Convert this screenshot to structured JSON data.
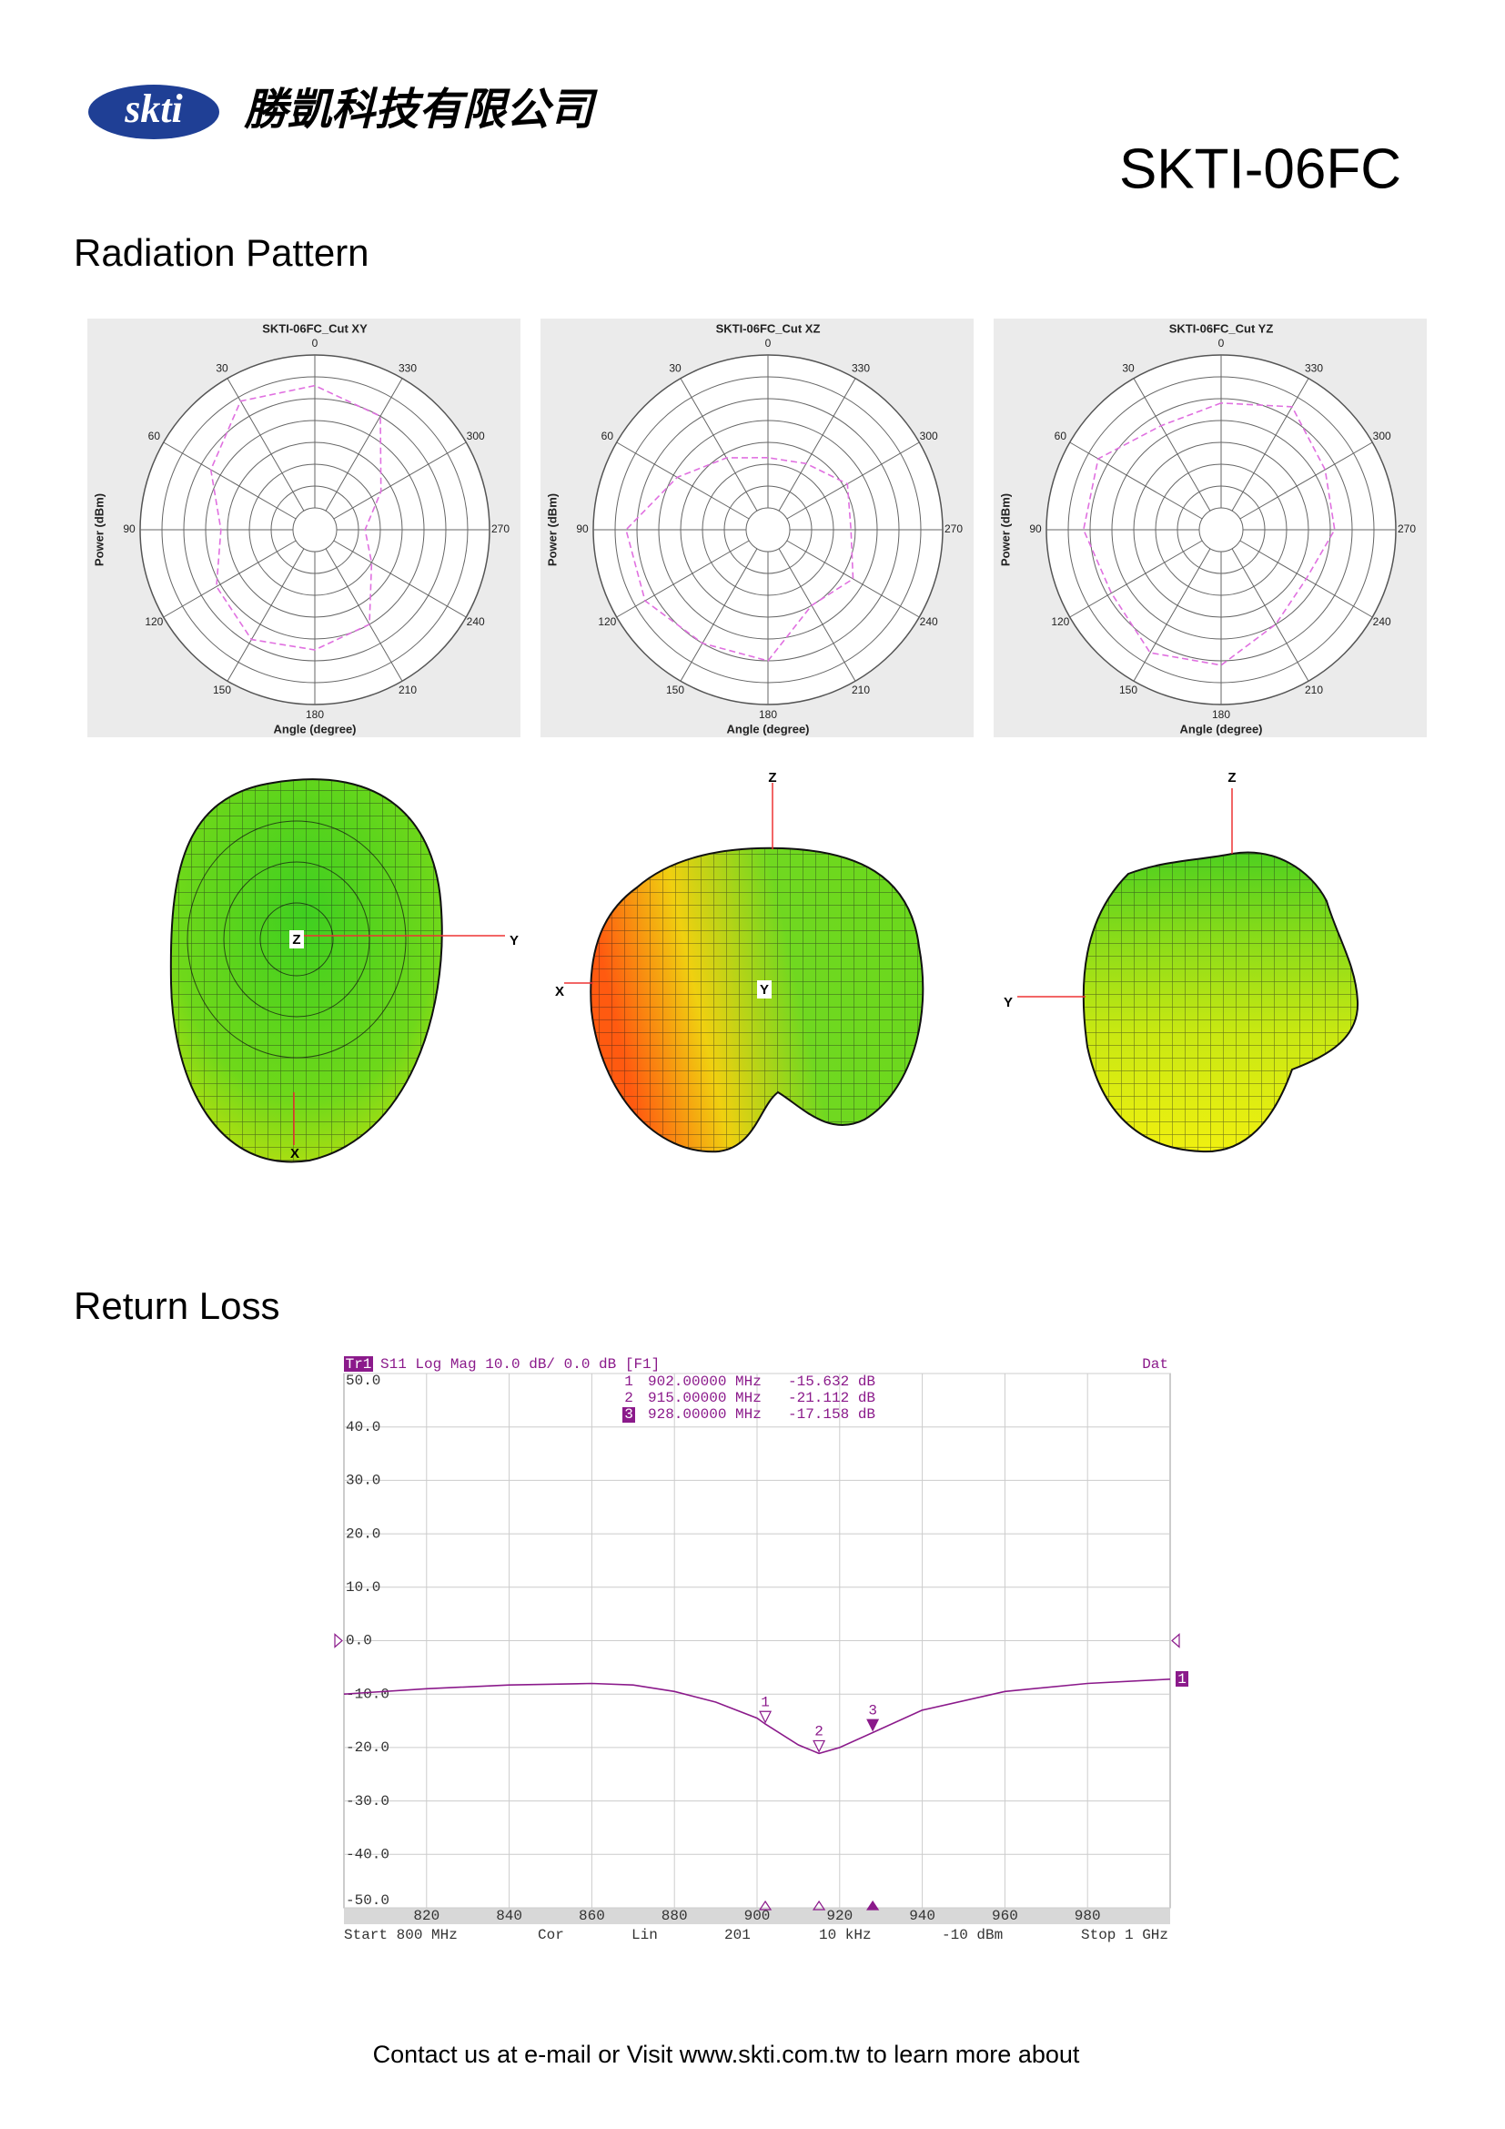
{
  "header": {
    "logo": "skti",
    "company": "勝凱科技有限公司",
    "model": "SKTI-06FC"
  },
  "sections": [
    "Radiation Pattern",
    "Return Loss"
  ],
  "patterns_3d": [
    {
      "axes": [
        "Z",
        "Y",
        "X"
      ]
    },
    {
      "axes": [
        "Z",
        "Y",
        "X"
      ]
    },
    {
      "axes": [
        "Z",
        "Y"
      ]
    }
  ],
  "chart_data": [
    {
      "type": "polar",
      "title": "SKTI-06FC_Cut XY",
      "radial_label": "Power (dBm)",
      "angle_label": "Angle (degree)",
      "angles": [
        0,
        30,
        60,
        90,
        120,
        150,
        180,
        210,
        240,
        270,
        300,
        330
      ],
      "rlim": [
        0,
        8
      ],
      "color": "#e070e0",
      "values": [
        6.6,
        6.8,
        5.5,
        4.3,
        5.2,
        5.8,
        5.5,
        5.0,
        3.0,
        2.3,
        3.5,
        6.0
      ]
    },
    {
      "type": "polar",
      "title": "SKTI-06FC_Cut XZ",
      "radial_label": "Power (dBm)",
      "angle_label": "Angle (degree)",
      "angles": [
        0,
        30,
        60,
        90,
        120,
        150,
        180,
        210,
        240,
        270,
        300,
        330
      ],
      "rlim": [
        0,
        8
      ],
      "color": "#e070e0",
      "values": [
        3.3,
        3.8,
        4.8,
        6.5,
        6.5,
        6.0,
        6.0,
        4.0,
        4.5,
        3.8,
        4.2,
        3.5
      ]
    },
    {
      "type": "polar",
      "title": "SKTI-06FC_Cut YZ",
      "radial_label": "Power (dBm)",
      "angle_label": "Angle (degree)",
      "angles": [
        0,
        30,
        60,
        90,
        120,
        150,
        180,
        210,
        240,
        270,
        300,
        330
      ],
      "rlim": [
        0,
        8
      ],
      "color": "#e070e0",
      "values": [
        5.8,
        5.5,
        6.5,
        6.3,
        5.8,
        6.5,
        6.2,
        5.0,
        4.5,
        5.2,
        5.5,
        6.5
      ]
    },
    {
      "type": "line",
      "trace": "Tr1",
      "header": "S11 Log Mag 10.0 dB/ 0.0 dB [F1]",
      "status": "Dat",
      "trace_end_label": "1",
      "x": [
        800,
        820,
        840,
        860,
        870,
        880,
        890,
        900,
        902,
        910,
        915,
        920,
        928,
        940,
        960,
        980,
        1000
      ],
      "xlim": [
        800,
        1000
      ],
      "xticks": [
        820,
        840,
        860,
        880,
        900,
        920,
        940,
        960,
        980
      ],
      "ylim": [
        -50,
        50
      ],
      "yticks": [
        {
          "value": 50,
          "label": "50.0"
        },
        {
          "value": 40,
          "label": "40.0"
        },
        {
          "value": 30,
          "label": "30.0"
        },
        {
          "value": 20,
          "label": "20.0"
        },
        {
          "value": 10,
          "label": "10.0"
        },
        {
          "value": 0,
          "label": "0.0"
        },
        {
          "value": -10,
          "label": "-10.0"
        },
        {
          "value": -20,
          "label": "-20.0"
        },
        {
          "value": -30,
          "label": "-30.0"
        },
        {
          "value": -40,
          "label": "-40.0"
        },
        {
          "value": -50,
          "label": "-50.0"
        }
      ],
      "grid": true,
      "series": [
        {
          "color": "#8b1a8b",
          "values": [
            -10,
            -9,
            -8.3,
            -8,
            -8.3,
            -9.5,
            -11.5,
            -14.5,
            -15.6,
            -19.5,
            -21.1,
            -20,
            -17.2,
            -13,
            -9.5,
            -8,
            -7.2
          ]
        }
      ],
      "markers": [
        {
          "name": "1",
          "x": 902,
          "y": -15.632,
          "x_label": "902.00000 MHz",
          "y_label": "-15.632 dB"
        },
        {
          "name": "2",
          "x": 915,
          "y": -21.112,
          "x_label": "915.00000 MHz",
          "y_label": "-21.112 dB"
        },
        {
          "name": "3",
          "x": 928,
          "y": -17.158,
          "x_label": "928.00000 MHz",
          "y_label": "-17.158 dB"
        }
      ],
      "footer": [
        "Start 800 MHz",
        "Cor",
        "Lin",
        "201",
        "10 kHz",
        "-10 dBm",
        "Stop 1 GHz"
      ]
    }
  ],
  "footer": "Contact us at e-mail or Visit www.skti.com.tw to learn more about"
}
